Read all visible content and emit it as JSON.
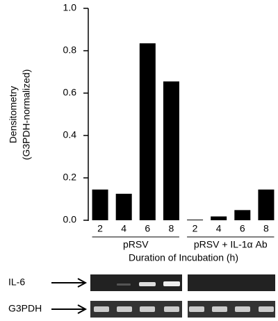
{
  "chart_data": {
    "type": "bar",
    "ylabel": [
      "Densitometry",
      "(G3PDH-normalized)"
    ],
    "xlabel": "Duration of Incubation (h)",
    "categories": [
      "2",
      "4",
      "6",
      "8",
      "2",
      "4",
      "6",
      "8"
    ],
    "values": [
      0.145,
      0.125,
      0.835,
      0.655,
      0.003,
      0.018,
      0.048,
      0.145
    ],
    "groups": [
      "pRSV",
      "pRSV + IL-1α Ab"
    ],
    "color": "#000000",
    "ylim": [
      0,
      1
    ],
    "yticks": [
      {
        "value": 0,
        "label": "0.0"
      },
      0.2,
      0.4,
      0.6,
      0.8,
      {
        "value": 1,
        "label": "1.0"
      }
    ]
  },
  "gel_labels": [
    "IL-6",
    "G3PDH"
  ]
}
